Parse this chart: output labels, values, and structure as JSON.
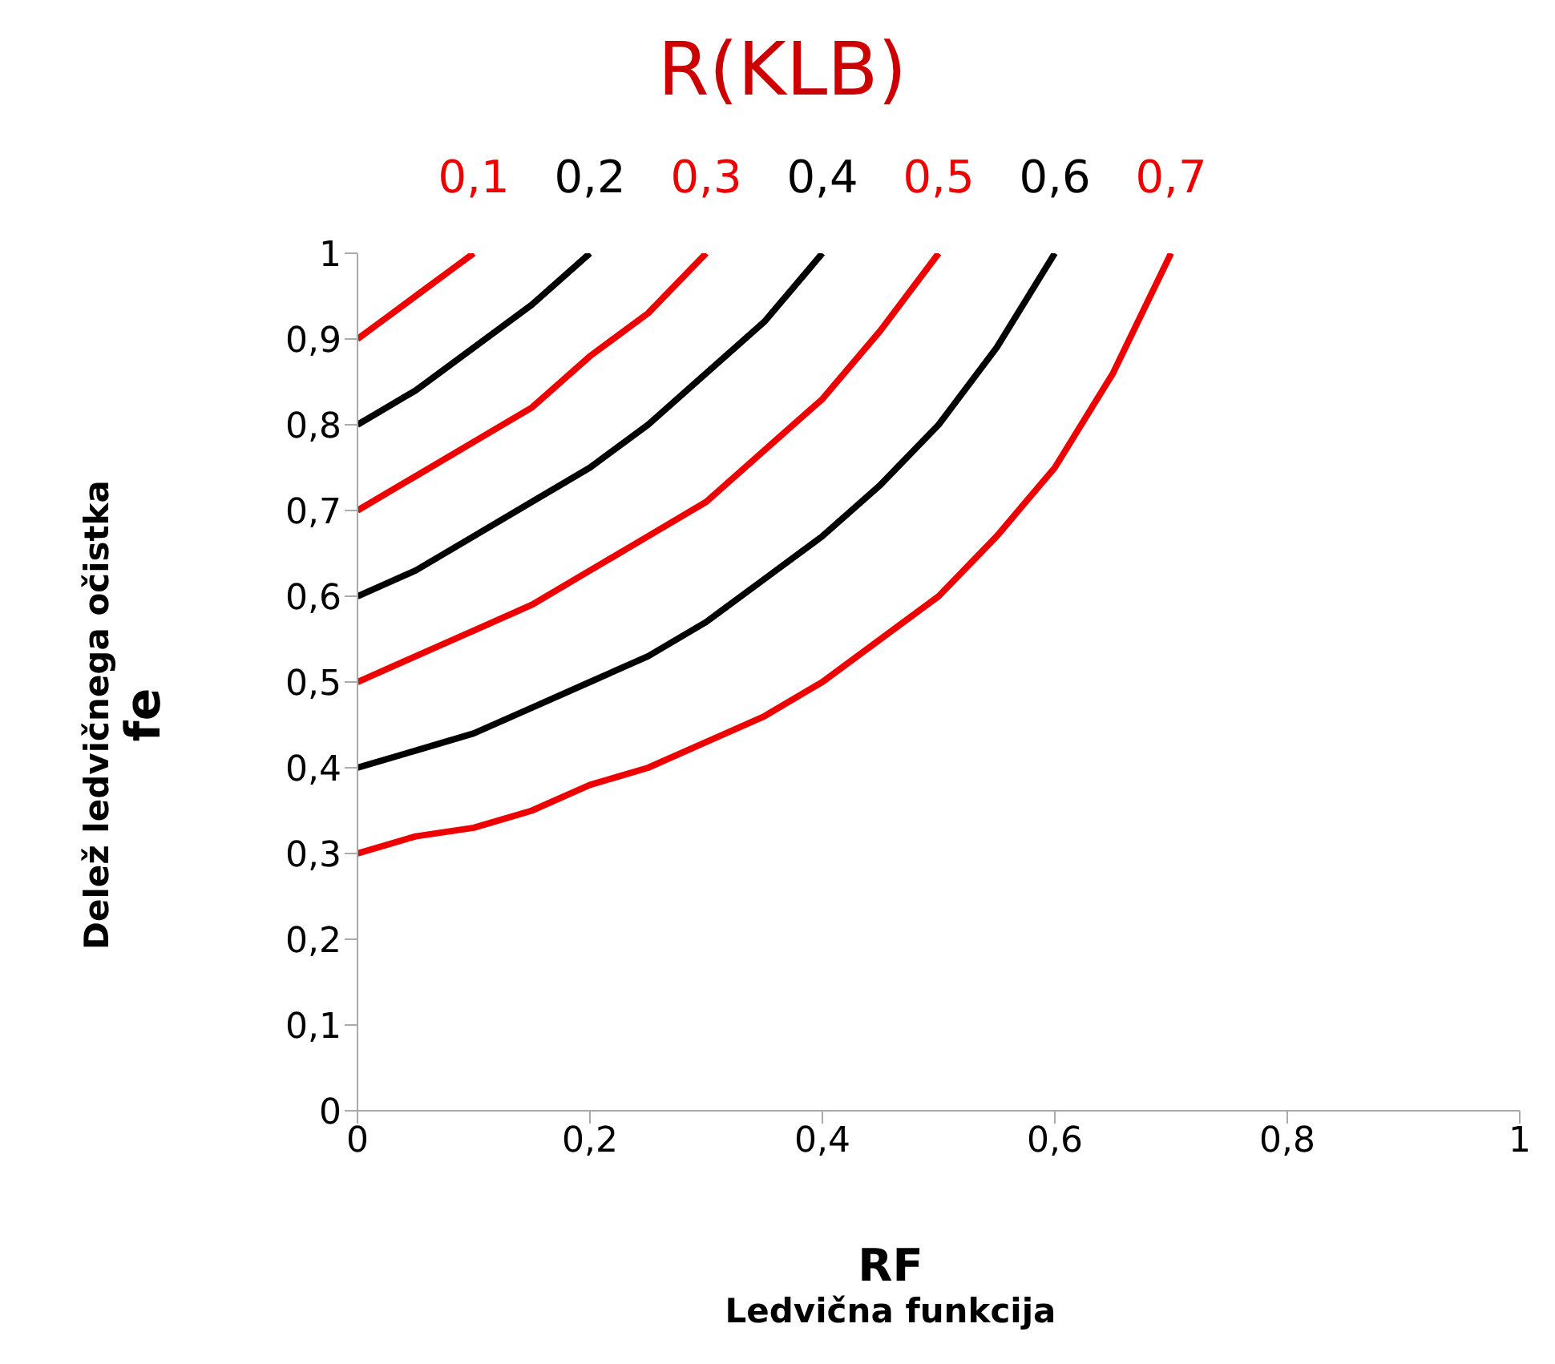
{
  "chart_data": {
    "type": "line",
    "title": "R(KLB)",
    "xlabel": "RF\nLedvična funkcija",
    "ylabel": "Delež ledvičnega očistka\nfe",
    "series": [
      {
        "name": "0,1",
        "color": "#ee0000",
        "x": [
          0,
          0.02,
          0.04,
          0.06,
          0.08,
          0.1
        ],
        "values": [
          0.9,
          0.92,
          0.94,
          0.96,
          0.98,
          1
        ]
      },
      {
        "name": "0,2",
        "color": "#000000",
        "x": [
          0,
          0.05,
          0.1,
          0.15,
          0.2
        ],
        "values": [
          0.8,
          0.84,
          0.89,
          0.94,
          1
        ]
      },
      {
        "name": "0,3",
        "color": "#ee0000",
        "x": [
          0,
          0.05,
          0.1,
          0.15,
          0.2,
          0.25,
          0.3
        ],
        "values": [
          0.7,
          0.74,
          0.78,
          0.82,
          0.88,
          0.93,
          1
        ]
      },
      {
        "name": "0,4",
        "color": "#000000",
        "x": [
          0,
          0.05,
          0.1,
          0.15,
          0.2,
          0.25,
          0.3,
          0.35,
          0.4
        ],
        "values": [
          0.6,
          0.63,
          0.67,
          0.71,
          0.75,
          0.8,
          0.86,
          0.92,
          1
        ]
      },
      {
        "name": "0,5",
        "color": "#ee0000",
        "x": [
          0,
          0.05,
          0.1,
          0.15,
          0.2,
          0.25,
          0.3,
          0.35,
          0.4,
          0.45,
          0.5
        ],
        "values": [
          0.5,
          0.53,
          0.56,
          0.59,
          0.63,
          0.67,
          0.71,
          0.77,
          0.83,
          0.91,
          1
        ]
      },
      {
        "name": "0,6",
        "color": "#000000",
        "x": [
          0,
          0.05,
          0.1,
          0.15,
          0.2,
          0.25,
          0.3,
          0.35,
          0.4,
          0.45,
          0.5,
          0.55,
          0.6
        ],
        "values": [
          0.4,
          0.42,
          0.44,
          0.47,
          0.5,
          0.53,
          0.57,
          0.62,
          0.67,
          0.73,
          0.8,
          0.89,
          1
        ]
      },
      {
        "name": "0,7",
        "color": "#ee0000",
        "x": [
          0,
          0.05,
          0.1,
          0.15,
          0.2,
          0.25,
          0.3,
          0.35,
          0.4,
          0.45,
          0.5,
          0.55,
          0.6,
          0.65,
          0.7
        ],
        "values": [
          0.3,
          0.32,
          0.33,
          0.35,
          0.38,
          0.4,
          0.43,
          0.46,
          0.5,
          0.55,
          0.6,
          0.67,
          0.75,
          0.86,
          1
        ]
      }
    ],
    "xlim": [
      0,
      1
    ],
    "xticks": [
      {
        "value": 0,
        "label": "0"
      },
      {
        "value": 0.2,
        "label": "0,2"
      },
      {
        "value": 0.4,
        "label": "0,4"
      },
      {
        "value": 0.6,
        "label": "0,6"
      },
      {
        "value": 0.8,
        "label": "0,8"
      },
      {
        "value": 1,
        "label": "1"
      }
    ],
    "ylim": [
      0,
      1
    ],
    "yticks": [
      {
        "value": 0,
        "label": "0"
      },
      {
        "value": 0.1,
        "label": "0,1"
      },
      {
        "value": 0.2,
        "label": "0,2"
      },
      {
        "value": 0.3,
        "label": "0,3"
      },
      {
        "value": 0.4,
        "label": "0,4"
      },
      {
        "value": 0.5,
        "label": "0,5"
      },
      {
        "value": 0.6,
        "label": "0,6"
      },
      {
        "value": 0.7,
        "label": "0,7"
      },
      {
        "value": 0.8,
        "label": "0,8"
      },
      {
        "value": 0.9,
        "label": "0,9"
      },
      {
        "value": 1,
        "label": "1"
      }
    ],
    "grid": false,
    "legend": false,
    "marker": "none",
    "line_style": "solid"
  }
}
